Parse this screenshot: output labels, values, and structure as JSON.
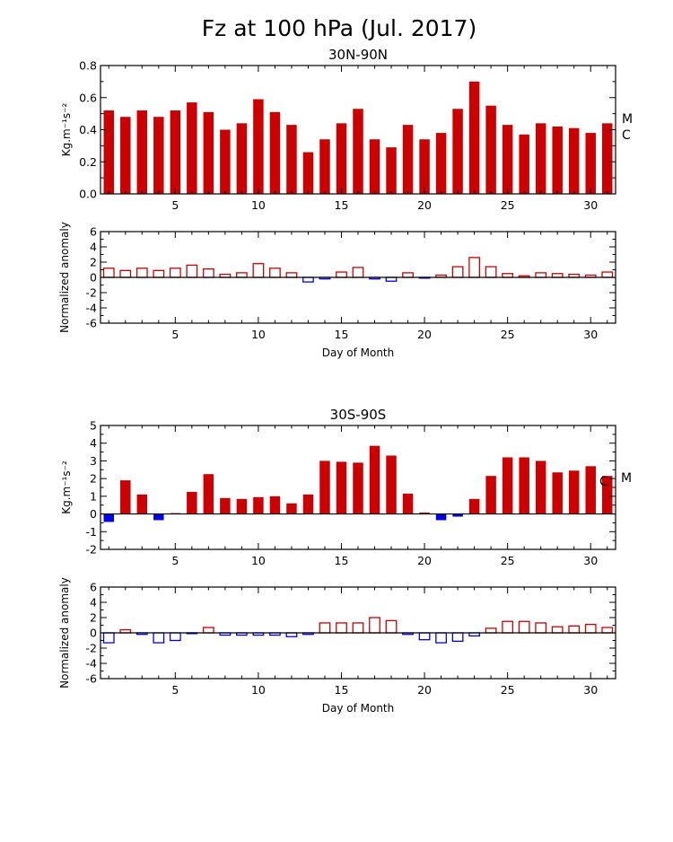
{
  "title": "Fz at 100 hPa (Jul. 2017)",
  "colors": {
    "positive": "#cc0000",
    "negative": "#0000ee",
    "axis": "#000000"
  },
  "chart_data": [
    {
      "id": "nh-flux",
      "type": "bar",
      "title": "30N-90N",
      "xlabel": "",
      "ylabel": "Kg.m⁻¹s⁻²",
      "style": "filled",
      "x": [
        1,
        2,
        3,
        4,
        5,
        6,
        7,
        8,
        9,
        10,
        11,
        12,
        13,
        14,
        15,
        16,
        17,
        18,
        19,
        20,
        21,
        22,
        23,
        24,
        25,
        26,
        27,
        28,
        29,
        30,
        31
      ],
      "values": [
        0.52,
        0.48,
        0.52,
        0.48,
        0.52,
        0.57,
        0.51,
        0.4,
        0.44,
        0.59,
        0.51,
        0.43,
        0.26,
        0.34,
        0.44,
        0.53,
        0.34,
        0.29,
        0.43,
        0.34,
        0.38,
        0.53,
        0.7,
        0.55,
        0.43,
        0.37,
        0.44,
        0.42,
        0.41,
        0.38,
        0.44
      ],
      "xlim": [
        0.5,
        31.5
      ],
      "ylim": [
        0,
        0.8
      ],
      "yticks": [
        "0.0",
        "0.2",
        "0.4",
        "0.6",
        "0.8"
      ],
      "xticks": [
        "5",
        "10",
        "15",
        "20",
        "25",
        "30"
      ],
      "markers": [
        {
          "label": "M",
          "value": 0.47
        },
        {
          "label": "C",
          "value": 0.37
        }
      ]
    },
    {
      "id": "nh-anomaly",
      "type": "bar",
      "title": "",
      "xlabel": "Day of Month",
      "ylabel": "Normalized anomaly",
      "style": "outline",
      "x": [
        1,
        2,
        3,
        4,
        5,
        6,
        7,
        8,
        9,
        10,
        11,
        12,
        13,
        14,
        15,
        16,
        17,
        18,
        19,
        20,
        21,
        22,
        23,
        24,
        25,
        26,
        27,
        28,
        29,
        30,
        31
      ],
      "values": [
        1.2,
        0.9,
        1.2,
        0.9,
        1.2,
        1.6,
        1.1,
        0.4,
        0.6,
        1.8,
        1.2,
        0.6,
        -0.6,
        -0.2,
        0.7,
        1.3,
        -0.2,
        -0.5,
        0.6,
        -0.1,
        0.3,
        1.4,
        2.6,
        1.4,
        0.5,
        0.2,
        0.6,
        0.5,
        0.4,
        0.3,
        0.7
      ],
      "xlim": [
        0.5,
        31.5
      ],
      "ylim": [
        -6,
        6
      ],
      "yticks": [
        "-6",
        "-4",
        "-2",
        "0",
        "2",
        "4",
        "6"
      ],
      "xticks": [
        "5",
        "10",
        "15",
        "20",
        "25",
        "30"
      ]
    },
    {
      "id": "sh-flux",
      "type": "bar",
      "title": "30S-90S",
      "xlabel": "",
      "ylabel": "Kg.m⁻¹s⁻²",
      "style": "filled",
      "x": [
        1,
        2,
        3,
        4,
        5,
        6,
        7,
        8,
        9,
        10,
        11,
        12,
        13,
        14,
        15,
        16,
        17,
        18,
        19,
        20,
        21,
        22,
        23,
        24,
        25,
        26,
        27,
        28,
        29,
        30,
        31
      ],
      "values": [
        -0.45,
        1.9,
        1.1,
        -0.35,
        0.05,
        1.25,
        2.25,
        0.9,
        0.85,
        0.95,
        1.0,
        0.6,
        1.1,
        3.0,
        2.95,
        2.9,
        3.85,
        3.3,
        1.15,
        0.08,
        -0.35,
        -0.15,
        0.85,
        2.15,
        3.2,
        3.2,
        3.0,
        2.35,
        2.45,
        2.7,
        2.15
      ],
      "xlim": [
        0.5,
        31.5
      ],
      "ylim": [
        -2,
        5
      ],
      "yticks": [
        "-2",
        "-1",
        "0",
        "1",
        "2",
        "3",
        "4",
        "5"
      ],
      "xticks": [
        "5",
        "10",
        "15",
        "20",
        "25",
        "30"
      ],
      "markers": [
        {
          "label": "C",
          "value": 1.85
        },
        {
          "label": "M",
          "value": 2.05
        }
      ]
    },
    {
      "id": "sh-anomaly",
      "type": "bar",
      "title": "",
      "xlabel": "Day of Month",
      "ylabel": "Normalized anomaly",
      "style": "outline",
      "x": [
        1,
        2,
        3,
        4,
        5,
        6,
        7,
        8,
        9,
        10,
        11,
        12,
        13,
        14,
        15,
        16,
        17,
        18,
        19,
        20,
        21,
        22,
        23,
        24,
        25,
        26,
        27,
        28,
        29,
        30,
        31
      ],
      "values": [
        -1.3,
        0.4,
        -0.2,
        -1.3,
        -1.0,
        -0.1,
        0.7,
        -0.3,
        -0.3,
        -0.3,
        -0.3,
        -0.5,
        -0.2,
        1.3,
        1.3,
        1.3,
        2.0,
        1.6,
        -0.2,
        -0.9,
        -1.3,
        -1.1,
        -0.4,
        0.6,
        1.5,
        1.5,
        1.3,
        0.8,
        0.9,
        1.1,
        0.7
      ],
      "xlim": [
        0.5,
        31.5
      ],
      "ylim": [
        -6,
        6
      ],
      "yticks": [
        "-6",
        "-4",
        "-2",
        "0",
        "2",
        "4",
        "6"
      ],
      "xticks": [
        "5",
        "10",
        "15",
        "20",
        "25",
        "30"
      ]
    }
  ]
}
